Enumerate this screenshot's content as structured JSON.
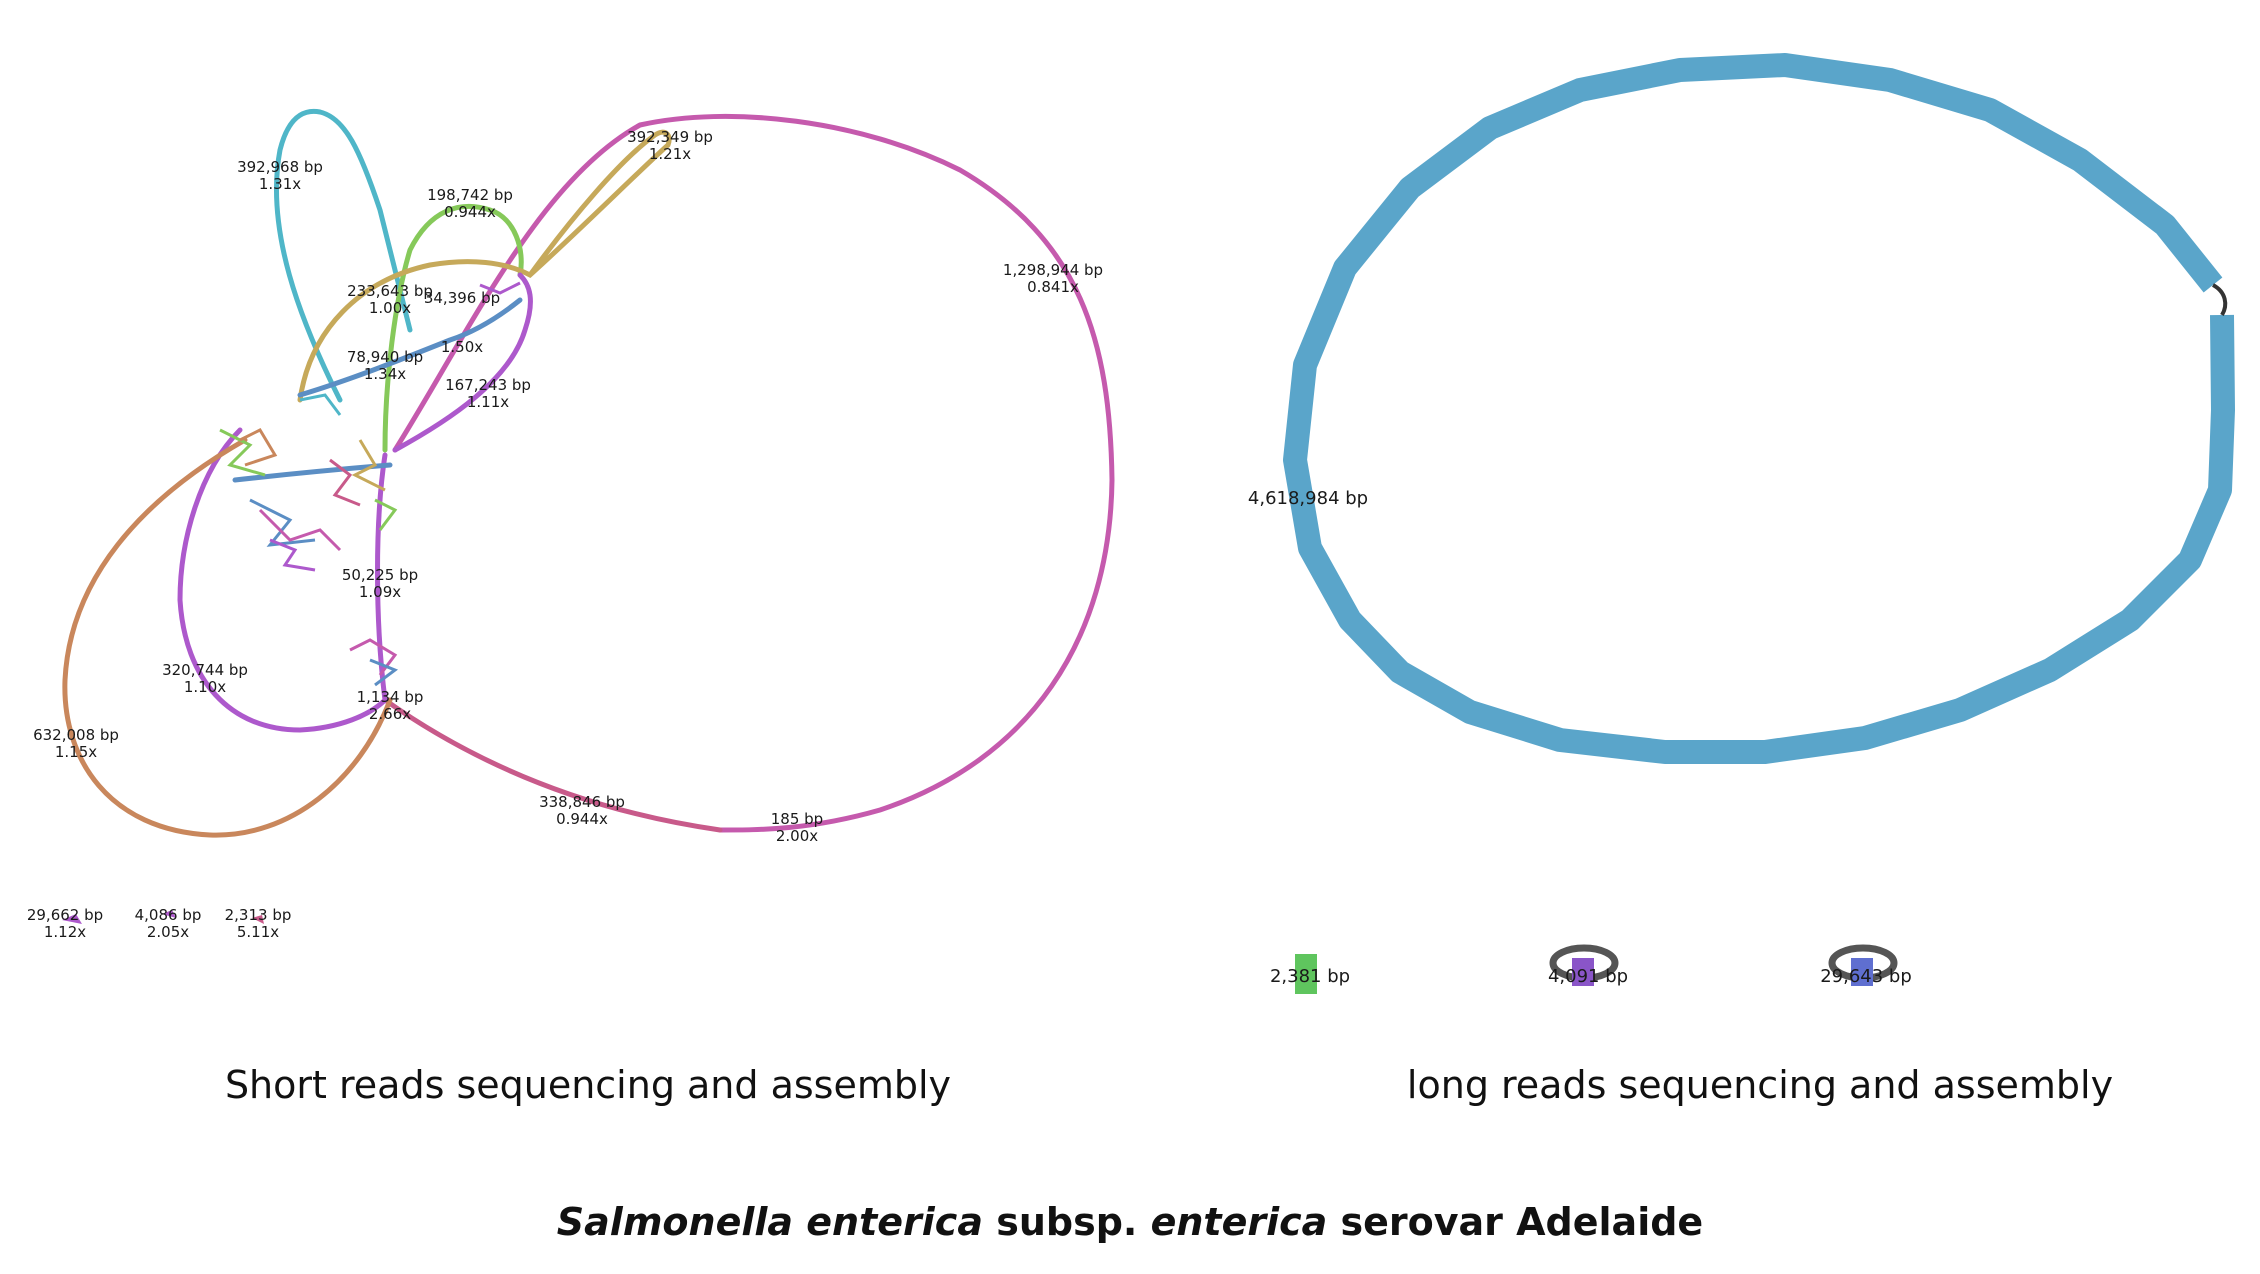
{
  "colors": {
    "magenta": "#c55aad",
    "cyan": "#4fb6c8",
    "green": "#86c95a",
    "gold": "#c6a95a",
    "orange": "#c9875c",
    "purple": "#ad59cc",
    "blue": "#5b8ec4",
    "rose": "#c85a8a",
    "long_blue": "#5aa5ca",
    "small_green": "#5fc55e",
    "small_purple": "#8a55c8",
    "small_blue": "#5f6fd0",
    "loop_gray": "#555555"
  },
  "short_reads": {
    "caption": "Short reads sequencing and assembly",
    "labels": [
      {
        "bp": "392,968 bp",
        "cov": "1.31x"
      },
      {
        "bp": "392,349 bp",
        "cov": "1.21x"
      },
      {
        "bp": "198,742 bp",
        "cov": "0.944x"
      },
      {
        "bp": "1,298,944 bp",
        "cov": "0.841x"
      },
      {
        "bp": "233,643 bp",
        "cov": "1.00x"
      },
      {
        "bp": "34,396 bp",
        "cov": "1.50x"
      },
      {
        "bp": "78,940 bp",
        "cov": "1.34x"
      },
      {
        "bp": "167,243 bp",
        "cov": "1.11x"
      },
      {
        "bp": "50,225 bp",
        "cov": "1.09x"
      },
      {
        "bp": "320,744 bp",
        "cov": "1.10x"
      },
      {
        "bp": "1,134 bp",
        "cov": "2.66x"
      },
      {
        "bp": "632,008 bp",
        "cov": "1.15x"
      },
      {
        "bp": "338,846 bp",
        "cov": "0.944x"
      },
      {
        "bp": "185 bp",
        "cov": "2.00x"
      },
      {
        "bp": "29,662 bp",
        "cov": "1.12x"
      },
      {
        "bp": "4,086 bp",
        "cov": "2.05x"
      },
      {
        "bp": "2,313 bp",
        "cov": "5.11x"
      }
    ]
  },
  "long_reads": {
    "caption": "long reads sequencing and assembly",
    "main_contig": "4,618,984 bp",
    "small_contigs": [
      {
        "bp": "2,381 bp"
      },
      {
        "bp": "4,091 bp"
      },
      {
        "bp": "29,643 bp"
      }
    ]
  },
  "title": {
    "genus_species": "Salmonella enterica",
    "subsp_word": "subsp.",
    "subsp_name": "enterica",
    "serovar": "serovar Adelaide"
  }
}
